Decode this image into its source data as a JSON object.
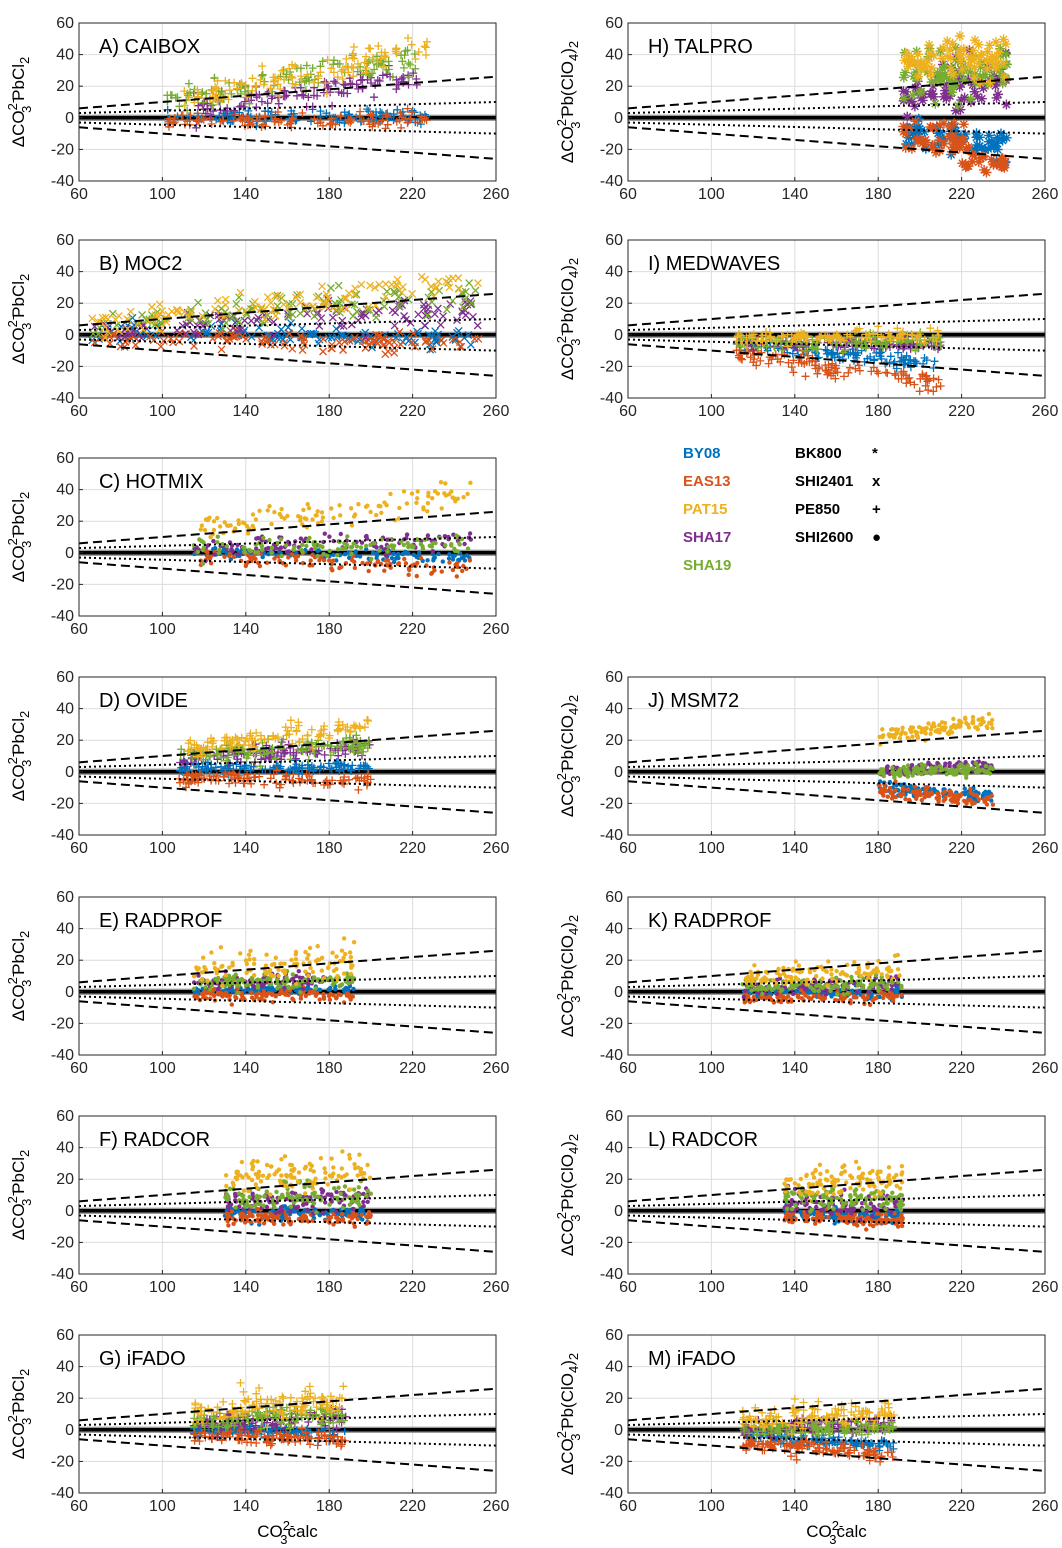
{
  "legend": {
    "cruises": [
      {
        "name": "BY08",
        "color": "#0072BD"
      },
      {
        "name": "EAS13",
        "color": "#D95319"
      },
      {
        "name": "PAT15",
        "color": "#EDB120"
      },
      {
        "name": "SHA17",
        "color": "#7E2F8E"
      },
      {
        "name": "SHA19",
        "color": "#77AC30"
      }
    ],
    "markers": [
      {
        "name": "BK800",
        "symbol": "*"
      },
      {
        "name": "SHI2401",
        "symbol": "x"
      },
      {
        "name": "PE850",
        "symbol": "+"
      },
      {
        "name": "SHI2600",
        "symbol": "●"
      }
    ]
  },
  "labels": {
    "ylabel_left": {
      "main": "ΔCO",
      "sup": "2-",
      "sub": "3",
      "tail": " PbCl",
      "tailsub": "2"
    },
    "ylabel_right": {
      "main": "ΔCO",
      "sup": "2-",
      "sub": "3",
      "tail": " Pb(ClO",
      "tailsub": "4",
      "tailend": ")",
      "tailsub2": "2"
    },
    "xlabel": {
      "main": "CO",
      "sup": "2-",
      "sub": "3",
      "tail": "calc"
    }
  },
  "chart_data": {
    "type": "scatter",
    "xlim": [
      60,
      260
    ],
    "ylim": [
      -40,
      60
    ],
    "xticks": [
      "60",
      "100",
      "140",
      "180",
      "220",
      "260"
    ],
    "yticks": [
      "-40",
      "-20",
      "0",
      "20",
      "40",
      "60"
    ],
    "grid": true,
    "reference_lines": {
      "dashed": {
        "at_60": [
          6,
          -6
        ],
        "at_260": [
          26,
          -26
        ]
      },
      "dotted": {
        "at_60": [
          3,
          -3
        ],
        "at_260": [
          10,
          -10
        ]
      },
      "zero_band": [
        -2,
        2
      ]
    },
    "panels": [
      {
        "id": "A",
        "title": "A) CAIBOX",
        "marker": "+",
        "column": "left",
        "ranges": [
          [
            102,
            227
          ],
          [
            102,
            227
          ],
          [
            110,
            227
          ],
          [
            115,
            225
          ],
          [
            102,
            225
          ]
        ],
        "trends": [
          [
            0.0,
            1.5,
            4
          ],
          [
            -2,
            -1,
            4
          ],
          [
            10,
            45,
            9
          ],
          [
            6,
            26,
            6
          ],
          [
            10,
            38,
            7
          ]
        ]
      },
      {
        "id": "B",
        "title": "B) MOC2",
        "marker": "x",
        "column": "left",
        "ranges": [
          [
            66,
            252
          ],
          [
            66,
            252
          ],
          [
            66,
            252
          ],
          [
            66,
            252
          ],
          [
            66,
            252
          ]
        ],
        "trends": [
          [
            2,
            -2,
            5
          ],
          [
            -2,
            -6,
            5
          ],
          [
            6,
            32,
            8
          ],
          [
            3,
            16,
            8
          ],
          [
            5,
            28,
            8
          ]
        ]
      },
      {
        "id": "C",
        "title": "C) HOTMIX",
        "marker": "●",
        "column": "left",
        "ranges": [
          [
            115,
            248
          ],
          [
            115,
            248
          ],
          [
            118,
            248
          ],
          [
            115,
            248
          ],
          [
            115,
            248
          ]
        ],
        "trends": [
          [
            0,
            -3,
            3
          ],
          [
            -2,
            -10,
            4
          ],
          [
            16,
            36,
            7
          ],
          [
            3,
            8,
            5
          ],
          [
            3,
            6,
            5
          ]
        ]
      },
      {
        "id": "D",
        "title": "D) OVIDE",
        "marker": "+",
        "column": "left",
        "ranges": [
          [
            108,
            200
          ],
          [
            108,
            200
          ],
          [
            110,
            200
          ],
          [
            108,
            200
          ],
          [
            108,
            200
          ]
        ],
        "trends": [
          [
            3,
            2,
            3
          ],
          [
            -4,
            -6,
            4
          ],
          [
            14,
            30,
            5
          ],
          [
            8,
            16,
            5
          ],
          [
            10,
            16,
            5
          ]
        ]
      },
      {
        "id": "E",
        "title": "E) RADPROF",
        "marker": "●",
        "column": "left",
        "ranges": [
          [
            115,
            192
          ],
          [
            115,
            192
          ],
          [
            115,
            192
          ],
          [
            115,
            192
          ],
          [
            115,
            192
          ]
        ],
        "trends": [
          [
            1,
            2,
            2
          ],
          [
            -2,
            -2,
            3
          ],
          [
            14,
            20,
            9
          ],
          [
            6,
            8,
            4
          ],
          [
            5,
            8,
            4
          ]
        ]
      },
      {
        "id": "F",
        "title": "F) RADCOR",
        "marker": "●",
        "column": "left",
        "ranges": [
          [
            130,
            200
          ],
          [
            130,
            200
          ],
          [
            130,
            200
          ],
          [
            130,
            200
          ],
          [
            130,
            200
          ]
        ],
        "trends": [
          [
            -2,
            -2,
            4
          ],
          [
            -4,
            -5,
            4
          ],
          [
            20,
            25,
            10
          ],
          [
            5,
            8,
            6
          ],
          [
            8,
            10,
            7
          ]
        ]
      },
      {
        "id": "G",
        "title": "G) iFADO",
        "marker": "+",
        "column": "left",
        "ranges": [
          [
            115,
            188
          ],
          [
            115,
            188
          ],
          [
            115,
            188
          ],
          [
            115,
            188
          ],
          [
            115,
            188
          ]
        ],
        "trends": [
          [
            0,
            -2,
            3
          ],
          [
            -4,
            -6,
            4
          ],
          [
            12,
            18,
            8
          ],
          [
            4,
            8,
            5
          ],
          [
            6,
            10,
            5
          ]
        ]
      },
      {
        "id": "H",
        "title": "H) TALPRO",
        "marker": "*",
        "column": "right",
        "ranges": [
          [
            192,
            242
          ],
          [
            192,
            242
          ],
          [
            192,
            242
          ],
          [
            192,
            242
          ],
          [
            192,
            242
          ]
        ],
        "trends": [
          [
            -8,
            -20,
            10
          ],
          [
            -10,
            -30,
            12
          ],
          [
            35,
            40,
            12
          ],
          [
            15,
            25,
            12
          ],
          [
            25,
            30,
            14
          ]
        ]
      },
      {
        "id": "I",
        "title": "I) MEDWAVES",
        "marker": "+",
        "column": "right",
        "ranges": [
          [
            112,
            210
          ],
          [
            112,
            210
          ],
          [
            112,
            210
          ],
          [
            112,
            210
          ],
          [
            112,
            210
          ]
        ],
        "trends": [
          [
            -5,
            -20,
            4
          ],
          [
            -12,
            -30,
            5
          ],
          [
            -2,
            0,
            4
          ],
          [
            -5,
            -6,
            3
          ],
          [
            -5,
            -5,
            4
          ]
        ]
      },
      {
        "id": "J",
        "title": "J) MSM72",
        "marker": "●",
        "column": "right",
        "ranges": [
          [
            180,
            235
          ],
          [
            180,
            235
          ],
          [
            180,
            235
          ],
          [
            180,
            235
          ],
          [
            180,
            235
          ]
        ],
        "trends": [
          [
            -10,
            -15,
            3
          ],
          [
            -12,
            -18,
            4
          ],
          [
            22,
            32,
            4
          ],
          [
            0,
            4,
            3
          ],
          [
            0,
            2,
            3
          ]
        ]
      },
      {
        "id": "K",
        "title": "K) RADPROF",
        "marker": "●",
        "column": "right",
        "ranges": [
          [
            115,
            192
          ],
          [
            115,
            192
          ],
          [
            115,
            192
          ],
          [
            115,
            192
          ],
          [
            115,
            192
          ]
        ],
        "trends": [
          [
            -1,
            0,
            3
          ],
          [
            -4,
            -4,
            3
          ],
          [
            10,
            14,
            6
          ],
          [
            3,
            5,
            4
          ],
          [
            3,
            5,
            4
          ]
        ]
      },
      {
        "id": "L",
        "title": "L) RADCOR",
        "marker": "●",
        "column": "right",
        "ranges": [
          [
            135,
            192
          ],
          [
            135,
            192
          ],
          [
            135,
            192
          ],
          [
            135,
            192
          ],
          [
            135,
            192
          ]
        ],
        "trends": [
          [
            -2,
            -4,
            4
          ],
          [
            -4,
            -6,
            4
          ],
          [
            18,
            20,
            7
          ],
          [
            5,
            4,
            6
          ],
          [
            8,
            6,
            6
          ]
        ]
      },
      {
        "id": "M",
        "title": "M) iFADO",
        "marker": "+",
        "column": "right",
        "ranges": [
          [
            115,
            188
          ],
          [
            115,
            188
          ],
          [
            115,
            188
          ],
          [
            115,
            188
          ],
          [
            115,
            188
          ]
        ],
        "trends": [
          [
            -4,
            -10,
            3
          ],
          [
            -8,
            -16,
            4
          ],
          [
            6,
            12,
            6
          ],
          [
            0,
            4,
            4
          ],
          [
            0,
            2,
            4
          ]
        ]
      }
    ]
  }
}
